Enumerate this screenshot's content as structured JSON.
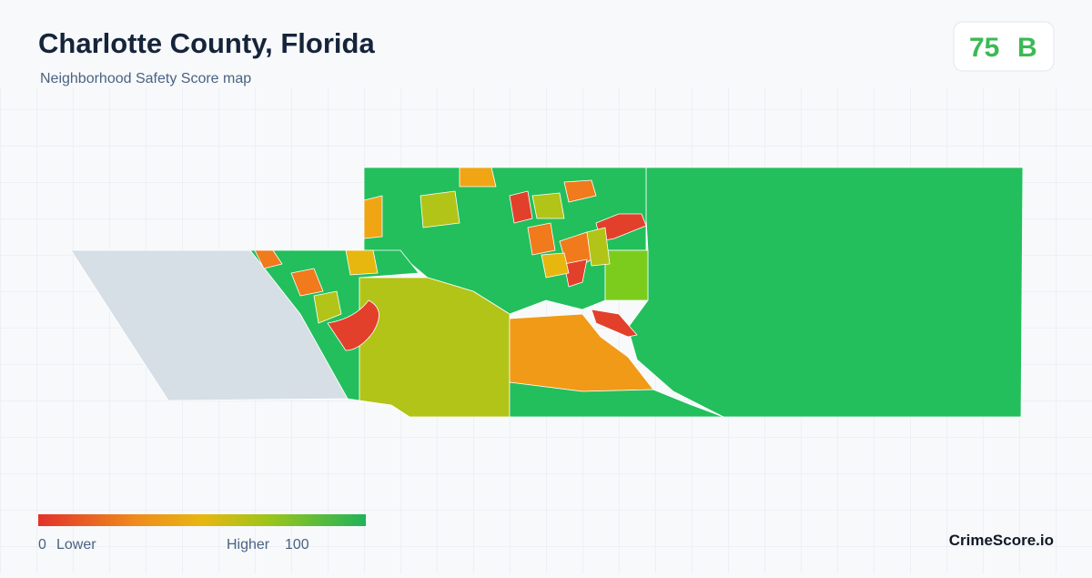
{
  "header": {
    "title": "Charlotte County, Florida",
    "subtitle": "Neighborhood Safety Score map"
  },
  "score": {
    "value": "75",
    "grade": "B"
  },
  "legend": {
    "min": "0",
    "min_label": "Lower",
    "max_label": "Higher",
    "max": "100"
  },
  "brand": "CrimeScore.io"
}
